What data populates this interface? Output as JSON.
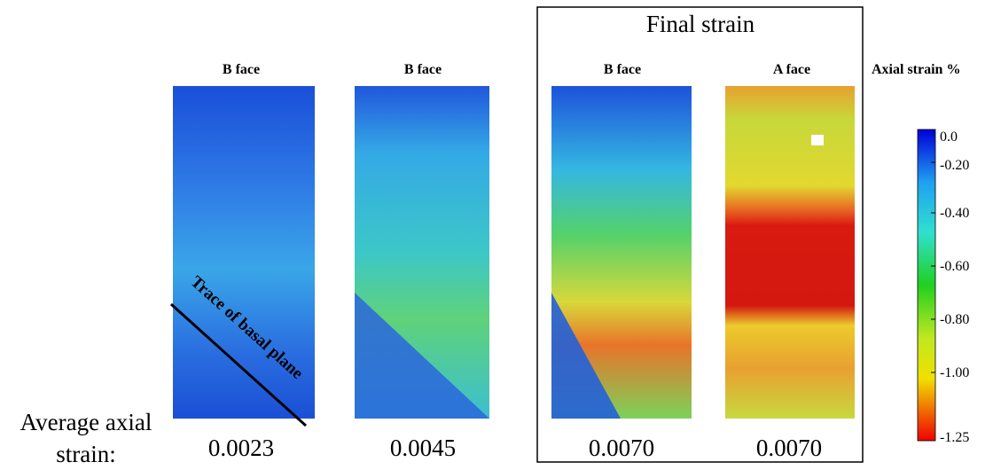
{
  "figure": {
    "group_title": "Final strain",
    "row_label": "Average axial strain:",
    "annotation": "Trace of basal plane",
    "panels": [
      {
        "label": "B face",
        "average": "0.0023"
      },
      {
        "label": "B face",
        "average": "0.0045"
      },
      {
        "label": "B face",
        "average": "0.0070"
      },
      {
        "label": "A face",
        "average": "0.0070"
      }
    ],
    "colorbar": {
      "title": "Axial strain %",
      "ticks": [
        "0.0",
        "-0.20",
        "-0.40",
        "-0.60",
        "-0.80",
        "-1.00",
        "-1.25"
      ]
    }
  }
}
